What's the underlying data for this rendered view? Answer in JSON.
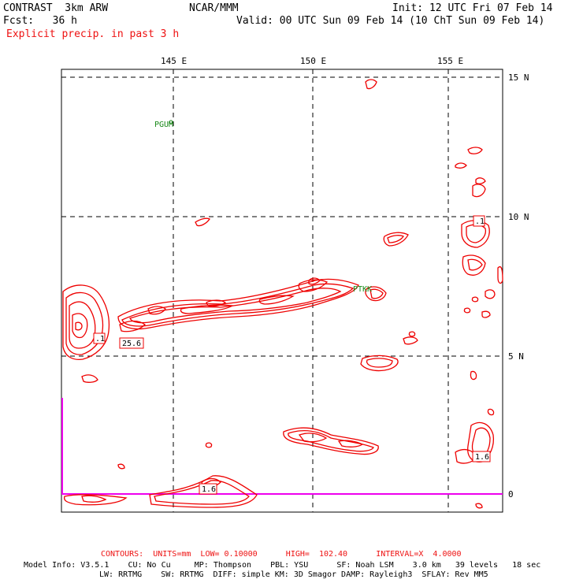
{
  "header": {
    "model": "CONTRAST  3km ARW",
    "org": "NCAR/MMM",
    "init": "Init: 12 UTC Fri 07 Feb 14",
    "fcst": "Fcst:   36 h",
    "valid": "Valid: 00 UTC Sun 09 Feb 14 (10 ChT Sun 09 Feb 14)",
    "field": "Explicit precip. in past 3 h"
  },
  "axes": {
    "lon_labels": [
      "145 E",
      "150 E",
      "155 E"
    ],
    "lat_labels": [
      "15 N",
      "10 N",
      "5 N",
      "0"
    ]
  },
  "stations": [
    "PGUM",
    "PTKK"
  ],
  "contour_labels": [
    ".1",
    "25.6",
    ".1",
    "1.6",
    "1.6"
  ],
  "footer": {
    "contours": "CONTOURS:  UNITS=mm  LOW= 0.10000      HIGH=  102.40      INTERVAL=X  4.0000",
    "model_info_1": "Model Info: V3.5.1    CU: No Cu     MP: Thompson    PBL: YSU      SF: Noah LSM    3.0 km   39 levels   18 sec",
    "model_info_2": "LW: RRTMG    SW: RRTMG  DIFF: simple KM: 3D Smagor DAMP: Rayleigh3  SFLAY: Rev MM5"
  },
  "colors": {
    "contour": "#ee0000",
    "station": "#1a8a1a",
    "boundary": "#ee00ee",
    "grid": "#000000"
  }
}
